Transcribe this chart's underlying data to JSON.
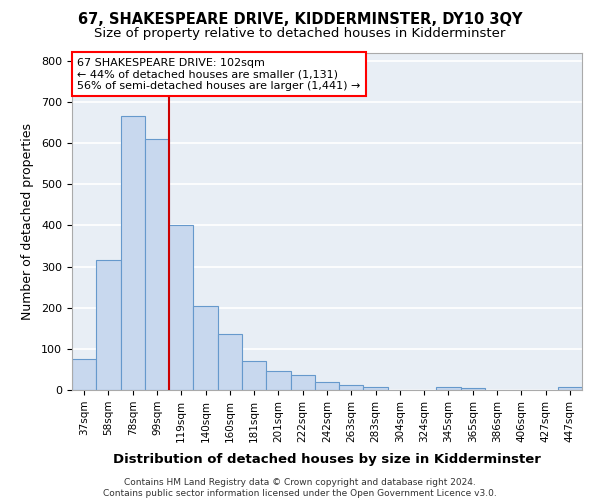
{
  "title": "67, SHAKESPEARE DRIVE, KIDDERMINSTER, DY10 3QY",
  "subtitle": "Size of property relative to detached houses in Kidderminster",
  "xlabel": "Distribution of detached houses by size in Kidderminster",
  "ylabel": "Number of detached properties",
  "categories": [
    "37sqm",
    "58sqm",
    "78sqm",
    "99sqm",
    "119sqm",
    "140sqm",
    "160sqm",
    "181sqm",
    "201sqm",
    "222sqm",
    "242sqm",
    "263sqm",
    "283sqm",
    "304sqm",
    "324sqm",
    "345sqm",
    "365sqm",
    "386sqm",
    "406sqm",
    "427sqm",
    "447sqm"
  ],
  "values": [
    75,
    315,
    665,
    610,
    400,
    205,
    135,
    70,
    46,
    37,
    20,
    12,
    8,
    0,
    0,
    7,
    6,
    0,
    0,
    0,
    7
  ],
  "bar_color": "#c8d8ee",
  "bar_edge_color": "#6699cc",
  "vline_color": "#cc0000",
  "annotation_line1": "67 SHAKESPEARE DRIVE: 102sqm",
  "annotation_line2": "← 44% of detached houses are smaller (1,131)",
  "annotation_line3": "56% of semi-detached houses are larger (1,441) →",
  "ylim": [
    0,
    820
  ],
  "yticks": [
    0,
    100,
    200,
    300,
    400,
    500,
    600,
    700,
    800
  ],
  "footer": "Contains HM Land Registry data © Crown copyright and database right 2024.\nContains public sector information licensed under the Open Government Licence v3.0.",
  "bg_color": "#e8eef5",
  "grid_color": "#ffffff"
}
